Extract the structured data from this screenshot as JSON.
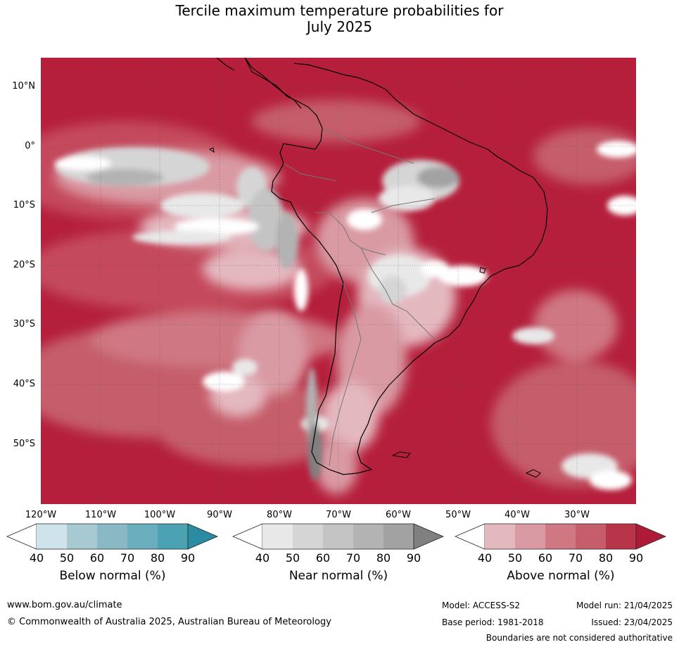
{
  "title": {
    "line1": "Tercile maximum temperature probabilities for",
    "line2": "July 2025"
  },
  "map": {
    "lat_labels": [
      "10°N",
      "0°",
      "10°S",
      "20°S",
      "30°S",
      "40°S",
      "50°S"
    ],
    "lon_labels": [
      "120°W",
      "110°W",
      "100°W",
      "90°W",
      "80°W",
      "70°W",
      "60°W",
      "50°W",
      "40°W",
      "30°W"
    ]
  },
  "colorbars": [
    {
      "label": "Below normal (%)",
      "ticks": [
        "40",
        "50",
        "60",
        "70",
        "80",
        "90"
      ],
      "colors": [
        "#ffffff",
        "#cfe4ea",
        "#a7c9d1",
        "#8ab8c4",
        "#6aadbd",
        "#4ba2b2",
        "#2a8ba2"
      ]
    },
    {
      "label": "Near normal (%)",
      "ticks": [
        "40",
        "50",
        "60",
        "70",
        "80",
        "90"
      ],
      "colors": [
        "#ffffff",
        "#e8e8e8",
        "#d5d5d5",
        "#c4c4c4",
        "#b3b3b3",
        "#a2a2a2",
        "#808080"
      ]
    },
    {
      "label": "Above normal (%)",
      "ticks": [
        "40",
        "50",
        "60",
        "70",
        "80",
        "90"
      ],
      "colors": [
        "#ffffff",
        "#e4b8bf",
        "#d99aa3",
        "#cf7783",
        "#c55d6b",
        "#b83549",
        "#ae1a38"
      ]
    }
  ],
  "footer": {
    "website": "www.bom.gov.au/climate",
    "copyright": "© Commonwealth of Australia 2025, Australian Bureau of Meteorology",
    "model": "Model: ACCESS-S2",
    "base_period": "Base period: 1981-2018",
    "model_run": "Model run: 21/04/2025",
    "issued": "Issued: 23/04/2025",
    "disclaimer": "Boundaries are not considered authoritative"
  }
}
